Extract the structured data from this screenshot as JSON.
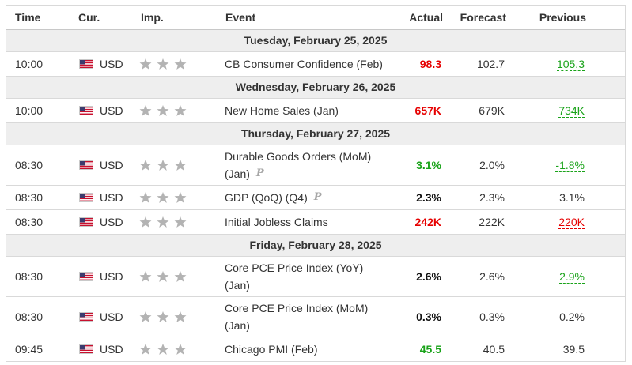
{
  "headers": {
    "time": "Time",
    "cur": "Cur.",
    "imp": "Imp.",
    "event": "Event",
    "actual": "Actual",
    "forecast": "Forecast",
    "previous": "Previous"
  },
  "colors": {
    "negative": "#e60000",
    "positive": "#1aa31a",
    "date_row_bg": "#eeeeee",
    "star_gray": "#b3b3b3"
  },
  "icons": {
    "flag": "us-flag-icon",
    "importance": "star-icon",
    "preliminary": "preliminary-p-icon"
  },
  "days": [
    {
      "date": "Tuesday, February 25, 2025",
      "events": [
        {
          "time": "10:00",
          "currency": "USD",
          "event_line1": "CB Consumer Confidence (Feb)",
          "event_line2": "",
          "preliminary": false,
          "actual": "98.3",
          "actual_color": "red",
          "forecast": "102.7",
          "previous": "105.3",
          "previous_style": "green-revised"
        }
      ]
    },
    {
      "date": "Wednesday, February 26, 2025",
      "events": [
        {
          "time": "10:00",
          "currency": "USD",
          "event_line1": "New Home Sales (Jan)",
          "event_line2": "",
          "preliminary": false,
          "actual": "657K",
          "actual_color": "red",
          "forecast": "679K",
          "previous": "734K",
          "previous_style": "green-revised"
        }
      ]
    },
    {
      "date": "Thursday, February 27, 2025",
      "events": [
        {
          "time": "08:30",
          "currency": "USD",
          "event_line1": "Durable Goods Orders (MoM)",
          "event_line2": "(Jan)",
          "preliminary": true,
          "actual": "3.1%",
          "actual_color": "green",
          "forecast": "2.0%",
          "previous": "-1.8%",
          "previous_style": "green-revised"
        },
        {
          "time": "08:30",
          "currency": "USD",
          "event_line1": "GDP (QoQ) (Q4)",
          "event_line2": "",
          "preliminary": true,
          "actual": "2.3%",
          "actual_color": "black",
          "forecast": "2.3%",
          "previous": "3.1%",
          "previous_style": "plain"
        },
        {
          "time": "08:30",
          "currency": "USD",
          "event_line1": "Initial Jobless Claims",
          "event_line2": "",
          "preliminary": false,
          "actual": "242K",
          "actual_color": "red",
          "forecast": "222K",
          "previous": "220K",
          "previous_style": "red-revised"
        }
      ]
    },
    {
      "date": "Friday, February 28, 2025",
      "events": [
        {
          "time": "08:30",
          "currency": "USD",
          "event_line1": "Core PCE Price Index (YoY)",
          "event_line2": "(Jan)",
          "preliminary": false,
          "actual": "2.6%",
          "actual_color": "black",
          "forecast": "2.6%",
          "previous": "2.9%",
          "previous_style": "green-revised"
        },
        {
          "time": "08:30",
          "currency": "USD",
          "event_line1": "Core PCE Price Index (MoM)",
          "event_line2": "(Jan)",
          "preliminary": false,
          "actual": "0.3%",
          "actual_color": "black",
          "forecast": "0.3%",
          "previous": "0.2%",
          "previous_style": "plain"
        },
        {
          "time": "09:45",
          "currency": "USD",
          "event_line1": "Chicago PMI (Feb)",
          "event_line2": "",
          "preliminary": false,
          "actual": "45.5",
          "actual_color": "green",
          "forecast": "40.5",
          "previous": "39.5",
          "previous_style": "plain"
        }
      ]
    }
  ]
}
